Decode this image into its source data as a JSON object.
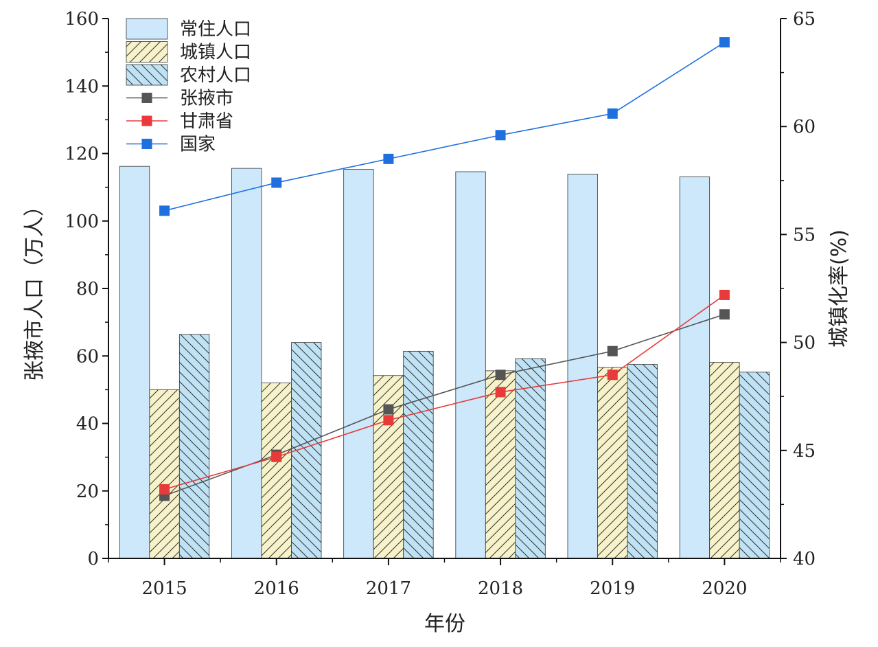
{
  "chart_data": {
    "type": "bar",
    "categories": [
      "2015",
      "2016",
      "2017",
      "2018",
      "2019",
      "2020"
    ],
    "xlabel": "年份",
    "ylabel": "张掖市人口（万人）",
    "y2label": "城镇化率(%)",
    "ylim": [
      0,
      160
    ],
    "y2lim": [
      40,
      65
    ],
    "yticks": [
      "0",
      "20",
      "40",
      "60",
      "80",
      "100",
      "120",
      "140",
      "160"
    ],
    "y2ticks": [
      "40",
      "45",
      "50",
      "55",
      "60",
      "65"
    ],
    "legend_position": "top-left",
    "bar_series": [
      {
        "name": "常住人口",
        "values": [
          116.2,
          115.6,
          115.3,
          114.6,
          113.9,
          113.1
        ],
        "color": "#cce8fa",
        "pattern": "solid"
      },
      {
        "name": "城镇人口",
        "values": [
          50.0,
          52.0,
          54.2,
          55.6,
          56.6,
          58.1
        ],
        "color": "#f7f2c9",
        "pattern": "diagonal-up"
      },
      {
        "name": "农村人口",
        "values": [
          66.4,
          64.0,
          61.4,
          59.2,
          57.5,
          55.2
        ],
        "color": "#bfe2f5",
        "pattern": "diagonal-down"
      }
    ],
    "line_series": [
      {
        "name": "张掖市",
        "axis": "right",
        "values": [
          42.9,
          44.8,
          46.9,
          48.5,
          49.6,
          51.3
        ],
        "color": "#555555"
      },
      {
        "name": "甘肃省",
        "axis": "right",
        "values": [
          43.2,
          44.7,
          46.4,
          47.7,
          48.5,
          52.2
        ],
        "color": "#e83a3a"
      },
      {
        "name": "国家",
        "axis": "right",
        "values": [
          56.1,
          57.4,
          58.5,
          59.6,
          60.6,
          63.9
        ],
        "color": "#1f6fde"
      }
    ]
  }
}
